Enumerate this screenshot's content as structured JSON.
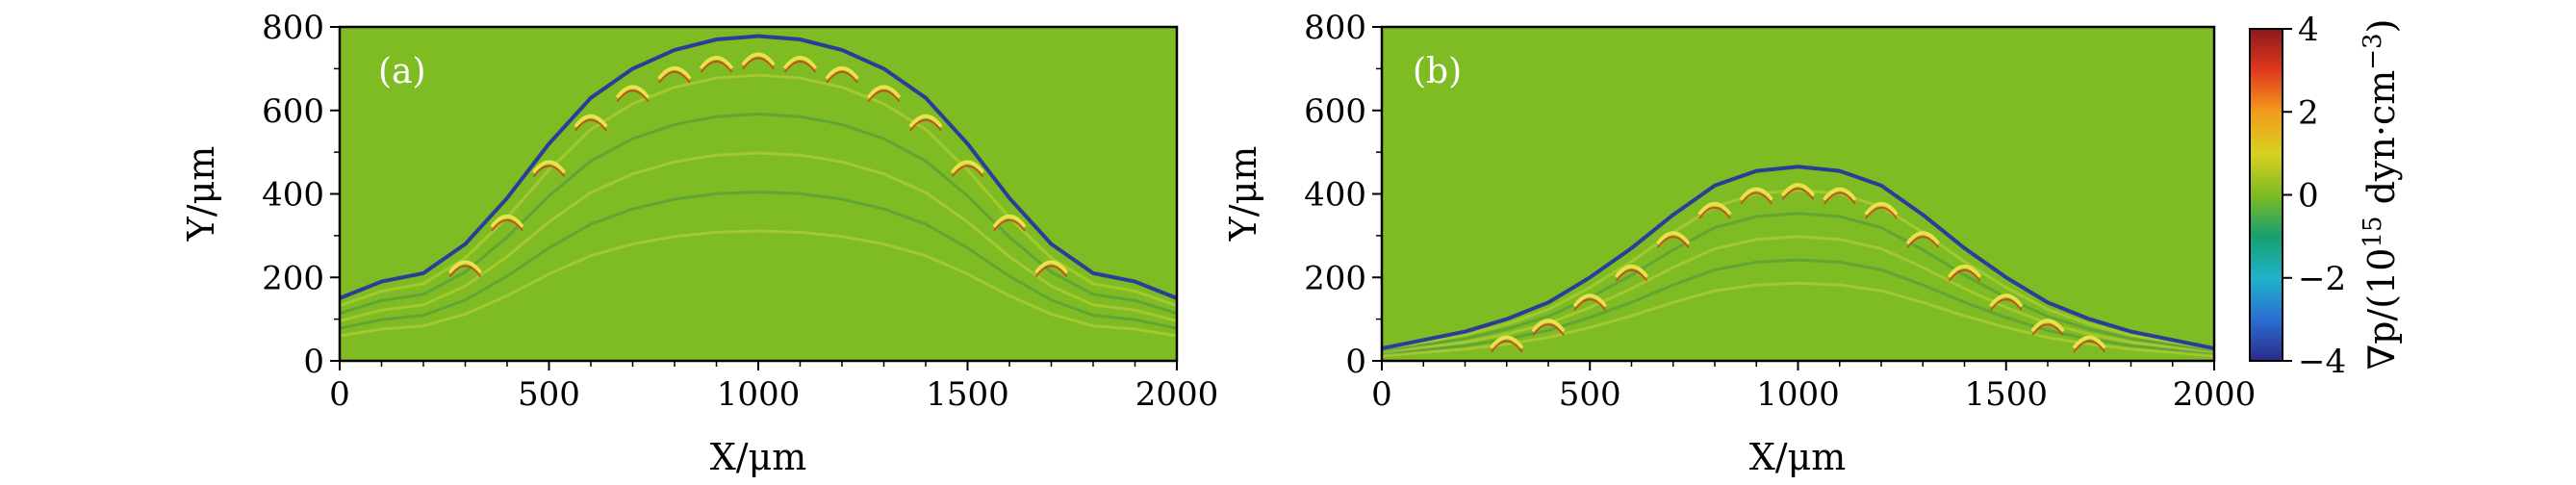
{
  "chart_data": [
    {
      "type": "heatmap",
      "panel_label": "(a)",
      "xlabel": "X/μm",
      "ylabel": "Y/μm",
      "xlim": [
        0,
        2000
      ],
      "ylim": [
        0,
        800
      ],
      "x_ticks": [
        0,
        500,
        1000,
        1500,
        2000
      ],
      "y_ticks": [
        0,
        200,
        400,
        600,
        800
      ],
      "background_value": 0,
      "interface_front": {
        "x": [
          0,
          100,
          200,
          300,
          400,
          500,
          600,
          700,
          800,
          900,
          1000,
          1100,
          1200,
          1300,
          1400,
          1500,
          1600,
          1700,
          1800,
          1900,
          2000
        ],
        "y": [
          150,
          190,
          210,
          280,
          390,
          520,
          630,
          700,
          745,
          770,
          778,
          770,
          745,
          700,
          630,
          520,
          390,
          280,
          210,
          190,
          150
        ]
      }
    },
    {
      "type": "heatmap",
      "panel_label": "(b)",
      "xlabel": "X/μm",
      "ylabel": "Y/μm",
      "xlim": [
        0,
        2000
      ],
      "ylim": [
        0,
        800
      ],
      "x_ticks": [
        0,
        500,
        1000,
        1500,
        2000
      ],
      "y_ticks": [
        0,
        200,
        400,
        600,
        800
      ],
      "background_value": 0,
      "interface_front": {
        "x": [
          0,
          100,
          200,
          300,
          400,
          500,
          600,
          700,
          800,
          900,
          1000,
          1100,
          1200,
          1300,
          1400,
          1500,
          1600,
          1700,
          1800,
          1900,
          2000
        ],
        "y": [
          30,
          50,
          70,
          100,
          140,
          200,
          270,
          350,
          420,
          455,
          465,
          455,
          420,
          350,
          270,
          200,
          140,
          100,
          70,
          50,
          30
        ]
      }
    }
  ],
  "colorbar": {
    "label_prefix": "∇p/(10",
    "label_exp": "15",
    "label_suffix": " dyn·cm",
    "label_suffix_exp": "−3",
    "label_close": ")",
    "min": -4,
    "max": 4,
    "ticks": [
      -4,
      -2,
      0,
      2,
      4
    ],
    "tick_labels": [
      "−4",
      "−2",
      "0",
      "2",
      "4"
    ],
    "colors": [
      "#2c2a8c",
      "#2b6fd3",
      "#1fb3c9",
      "#17a06f",
      "#7fbb22",
      "#d9d121",
      "#f29b1b",
      "#e2381e",
      "#8b1a1a"
    ]
  },
  "colors": {
    "background": "#7fbb22",
    "front": "#2b3d9a",
    "ridge_light": "#e8e34a",
    "ridge_dark": "#2e7f5a"
  }
}
